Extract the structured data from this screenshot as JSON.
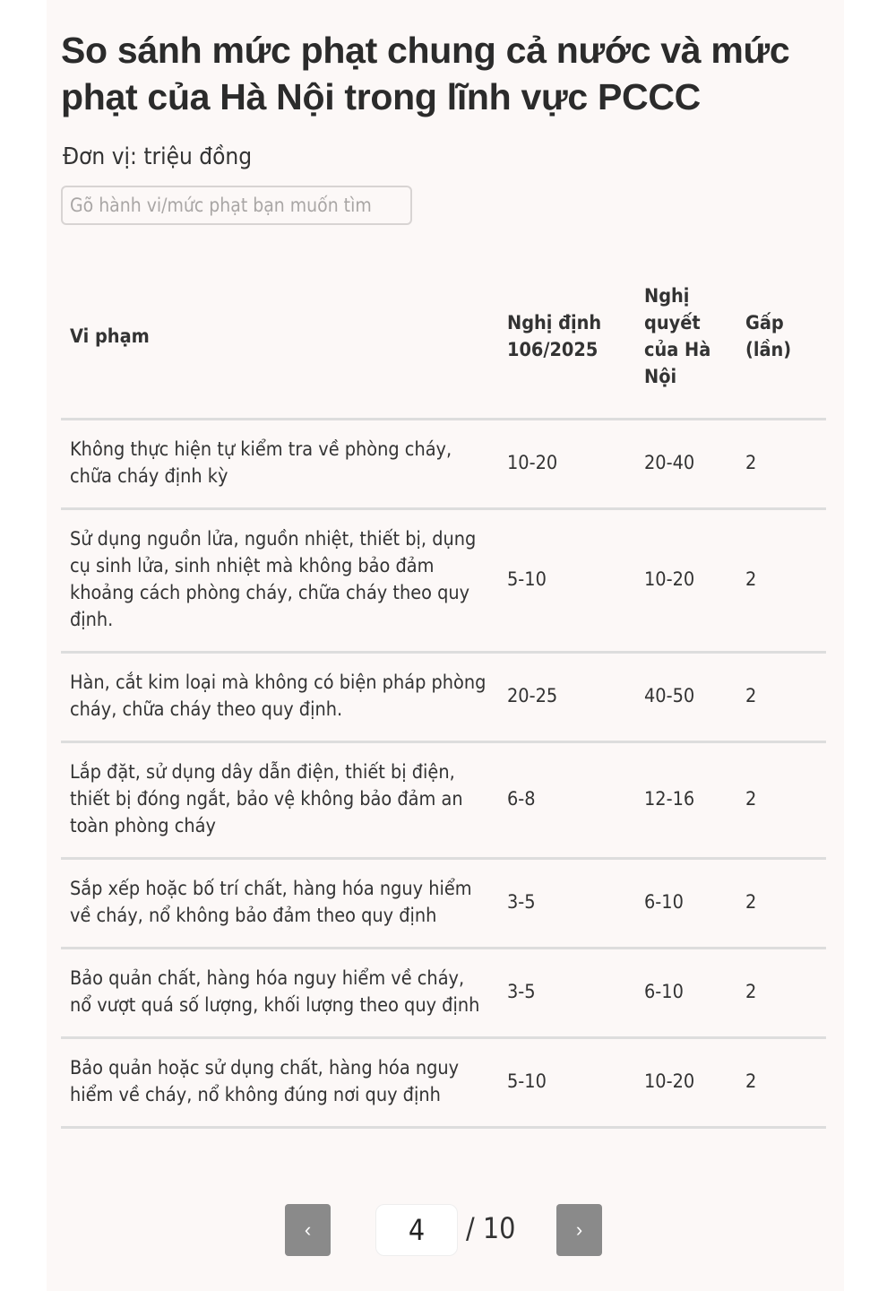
{
  "title": "So sánh mức phạt chung cả nước và mức phạt của Hà Nội trong lĩnh vực PCCC",
  "unit": "Đơn vị: triệu đồng",
  "search": {
    "placeholder": "Gõ hành vi/mức phạt bạn muốn tìm",
    "value": ""
  },
  "table": {
    "headers": [
      "Vi phạm",
      "Nghị định 106/2025",
      "Nghị quyết của Hà Nội",
      "Gấp (lần)"
    ],
    "rows": [
      [
        "Không thực hiện tự kiểm tra về phòng cháy, chữa cháy định kỳ",
        "10-20",
        "20-40",
        "2"
      ],
      [
        "Sử dụng nguồn lửa, nguồn nhiệt, thiết bị, dụng cụ sinh lửa, sinh nhiệt mà không bảo đảm khoảng cách phòng cháy, chữa cháy theo quy định.",
        "5-10",
        "10-20",
        "2"
      ],
      [
        "Hàn, cắt kim loại mà không có biện pháp phòng cháy, chữa cháy theo quy định.",
        "20-25",
        "40-50",
        "2"
      ],
      [
        "Lắp đặt, sử dụng dây dẫn điện, thiết bị điện, thiết bị đóng ngắt, bảo vệ không bảo đảm an toàn phòng cháy",
        "6-8",
        "12-16",
        "2"
      ],
      [
        "Sắp xếp hoặc bố trí chất, hàng hóa nguy hiểm về cháy, nổ không bảo đảm theo quy định",
        "3-5",
        "6-10",
        "2"
      ],
      [
        "Bảo quản chất, hàng hóa nguy hiểm về cháy, nổ vượt quá số lượng, khối lượng theo quy định",
        "3-5",
        "6-10",
        "2"
      ],
      [
        "Bảo quản hoặc sử dụng chất, hàng hóa nguy hiểm về cháy, nổ không đúng nơi quy định",
        "5-10",
        "10-20",
        "2"
      ]
    ]
  },
  "pagination": {
    "prev_label": "‹",
    "next_label": "›",
    "current_page": "4",
    "total": "/ 10"
  },
  "colors": {
    "card_bg": "#fcf8f7",
    "button_bg": "#8a8a8a",
    "divider": "#dddddd"
  }
}
